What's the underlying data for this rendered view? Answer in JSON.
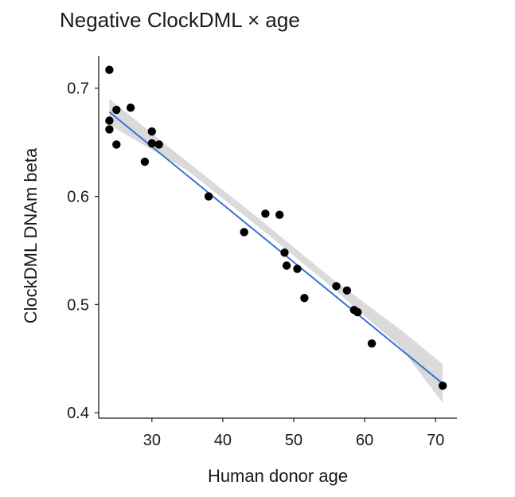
{
  "chart_data": {
    "type": "scatter",
    "title": "Negative ClockDML × age",
    "xlabel": "Human donor age",
    "ylabel": "ClockDML DNAm beta",
    "xlim": [
      22.5,
      73
    ],
    "ylim": [
      0.395,
      0.73
    ],
    "xticks": [
      30,
      40,
      50,
      60,
      70
    ],
    "yticks": [
      0.4,
      0.5,
      0.6,
      0.7
    ],
    "xtick_labels": [
      "30",
      "40",
      "50",
      "60",
      "70"
    ],
    "ytick_labels": [
      "0.4",
      "0.5",
      "0.6",
      "0.7"
    ],
    "grid": false,
    "points": [
      {
        "x": 24,
        "y": 0.717
      },
      {
        "x": 24,
        "y": 0.67
      },
      {
        "x": 24,
        "y": 0.662
      },
      {
        "x": 25,
        "y": 0.68
      },
      {
        "x": 25,
        "y": 0.648
      },
      {
        "x": 27,
        "y": 0.682
      },
      {
        "x": 29,
        "y": 0.632
      },
      {
        "x": 30,
        "y": 0.66
      },
      {
        "x": 30,
        "y": 0.649
      },
      {
        "x": 31,
        "y": 0.648
      },
      {
        "x": 38,
        "y": 0.6
      },
      {
        "x": 43,
        "y": 0.567
      },
      {
        "x": 46,
        "y": 0.584
      },
      {
        "x": 48,
        "y": 0.583
      },
      {
        "x": 48.7,
        "y": 0.548
      },
      {
        "x": 49,
        "y": 0.536
      },
      {
        "x": 50.5,
        "y": 0.533
      },
      {
        "x": 51.5,
        "y": 0.506
      },
      {
        "x": 56,
        "y": 0.517
      },
      {
        "x": 57.5,
        "y": 0.513
      },
      {
        "x": 58.5,
        "y": 0.495
      },
      {
        "x": 59,
        "y": 0.493
      },
      {
        "x": 61,
        "y": 0.464
      },
      {
        "x": 71,
        "y": 0.425
      }
    ],
    "fit": {
      "x": [
        24,
        71
      ],
      "y": [
        0.678,
        0.427
      ]
    },
    "confidence_band": {
      "x": [
        24,
        35,
        45,
        55,
        65,
        71
      ],
      "lower": [
        0.666,
        0.624,
        0.572,
        0.518,
        0.461,
        0.409
      ],
      "upper": [
        0.69,
        0.632,
        0.58,
        0.526,
        0.477,
        0.445
      ]
    },
    "colors": {
      "points": "#000000",
      "fit": "#3a6fd8",
      "band": "#d3d3d3",
      "axes": "#1a1a1a"
    }
  }
}
